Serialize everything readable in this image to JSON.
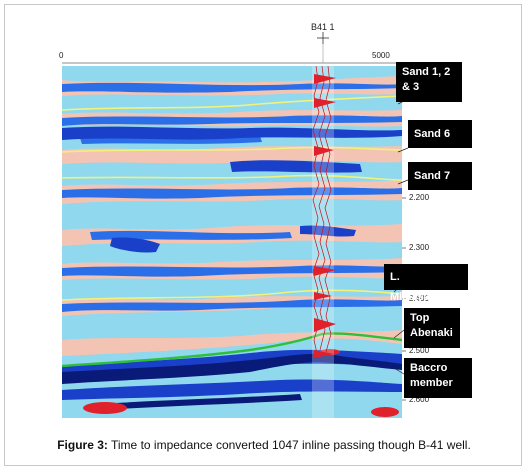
{
  "well": {
    "name": "B41 1",
    "symbol": "well-crosshair"
  },
  "axis": {
    "top_left": "0",
    "top_right": "5000",
    "time_ticks": [
      "2.200",
      "2.300",
      "2.400",
      "2.500",
      "2.600"
    ]
  },
  "horizon_labels": [
    {
      "id": "sand123",
      "lines": [
        "Sand 1, 2",
        "& 3"
      ]
    },
    {
      "id": "sand6",
      "lines": [
        "Sand 6"
      ]
    },
    {
      "id": "sand7",
      "lines": [
        "Sand 7"
      ]
    },
    {
      "id": "lmissisauga",
      "lines": [
        "L. Missisauga"
      ]
    },
    {
      "id": "topabenaki",
      "lines": [
        "Top",
        "Abenaki"
      ]
    },
    {
      "id": "baccro",
      "lines": [
        "Baccro",
        "member"
      ]
    }
  ],
  "caption": {
    "prefix": "Figure 3:",
    "text": " Time to impedance converted 1047 inline passing though B-41 well."
  },
  "colors": {
    "background_pink": "#f3c4b4",
    "light_blue": "#8fd8ee",
    "mid_blue": "#1a4fd8",
    "dark_blue": "#0a1a78",
    "red": "#e0202a",
    "yellow_horizon": "#f2f27a",
    "green_horizon": "#2fbf3a",
    "cyan": "#36c8f0"
  }
}
